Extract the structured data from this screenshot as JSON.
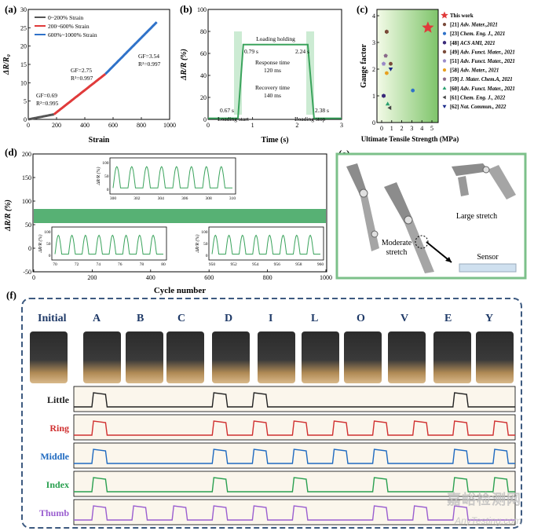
{
  "panel_a": {
    "label": "(a)",
    "ylabel": "ΔR/R₀",
    "xlabel": "Strain",
    "legend": [
      "0~200% Strain",
      "200~600% Strain",
      "600%~1000% Strain"
    ],
    "annotations": [
      "GF=0.69",
      "R²=0.995",
      "GF=2.75",
      "R²=0.997",
      "GF=3.54",
      "R²=0.997"
    ],
    "xticks": [
      "0",
      "200",
      "400",
      "600",
      "800",
      "1000"
    ],
    "yticks": [
      "0",
      "5",
      "10",
      "15",
      "20",
      "25",
      "30"
    ],
    "colors": {
      "s1": "#555555",
      "s2": "#e03a3a",
      "s3": "#2f72c9"
    }
  },
  "panel_b": {
    "label": "(b)",
    "ylabel": "ΔR/R (%)",
    "xlabel": "Time (s)",
    "annotations": [
      "Loading holding",
      "0.79 s",
      "2.24 s",
      "Response time",
      "120 ms",
      "Recovery time",
      "140 ms",
      "0.67 s",
      "2.38 s",
      "Loading start",
      "Loading stop"
    ],
    "xticks": [
      "0",
      "1",
      "2",
      "3"
    ],
    "yticks": [
      "0",
      "20",
      "40",
      "60",
      "80",
      "100"
    ],
    "color": "#3aa35c"
  },
  "panel_c": {
    "label": "(c)",
    "ylabel": "Gauge factor",
    "xlabel": "Ultimate Tensile Strength (MPa)",
    "xticks": [
      "0",
      "1",
      "2",
      "3",
      "4",
      "5"
    ],
    "yticks": [
      "0",
      "1",
      "2",
      "3",
      "4"
    ],
    "legend": [
      {
        "ref": "This work",
        "journal": "",
        "color": "#e03a3a",
        "shape": "star"
      },
      {
        "ref": "[21]",
        "journal": "Adv. Mater.,2021",
        "color": "#7a4a3a",
        "shape": "circle"
      },
      {
        "ref": "[23]",
        "journal": "Chem. Eng. J., 2021",
        "color": "#2f72c9",
        "shape": "circle"
      },
      {
        "ref": "[48]",
        "journal": "ACS AMI, 2021",
        "color": "#3a2a7a",
        "shape": "hex"
      },
      {
        "ref": "[49]",
        "journal": "Adv. Funct. Mater., 2021",
        "color": "#7a4a3a",
        "shape": "hex"
      },
      {
        "ref": "[51]",
        "journal": "Adv. Funct. Mater., 2021",
        "color": "#9a8ac8",
        "shape": "pent"
      },
      {
        "ref": "[58]",
        "journal": "Adv. Mater., 2021",
        "color": "#e8a020",
        "shape": "circle"
      },
      {
        "ref": "[59]",
        "journal": "J. Mater. Chem.A, 2021",
        "color": "#8a6a8a",
        "shape": "pent"
      },
      {
        "ref": "[60]",
        "journal": "Adv. Funct. Mater., 2021",
        "color": "#2aa070",
        "shape": "tri"
      },
      {
        "ref": "[61]",
        "journal": "Chem. Eng. J., 2022",
        "color": "#444444",
        "shape": "tril"
      },
      {
        "ref": "[62]",
        "journal": "Nat. Commun., 2022",
        "color": "#1a2a8a",
        "shape": "trid"
      }
    ]
  },
  "panel_d": {
    "label": "(d)",
    "ylabel": "ΔR/R (%)",
    "xlabel": "Cycle number",
    "xticks": [
      "0",
      "200",
      "400",
      "600",
      "800",
      "1000"
    ],
    "yticks": [
      "-50",
      "0",
      "50",
      "100",
      "150",
      "200"
    ],
    "inset_top": {
      "ylabel": "ΔR/R (%)",
      "xticks": [
        "300",
        "302",
        "304",
        "306",
        "308",
        "310"
      ],
      "yticks": [
        "0",
        "50",
        "100"
      ]
    },
    "inset_left": {
      "ylabel": "ΔR/R (%)",
      "xticks": [
        "70",
        "72",
        "74",
        "76",
        "78",
        "80"
      ],
      "yticks": [
        "0",
        "50",
        "100"
      ]
    },
    "inset_right": {
      "ylabel": "ΔR/R (%)",
      "xticks": [
        "950",
        "952",
        "954",
        "956",
        "958",
        "960"
      ],
      "yticks": [
        "0",
        "50",
        "100"
      ]
    },
    "color": "#3aa35c"
  },
  "panel_e": {
    "label": "(e)",
    "texts": [
      "Large stretch",
      "Moderate",
      "stretch",
      "Sensor"
    ]
  },
  "panel_f": {
    "label": "(f)",
    "gestures": [
      "Initial",
      "A",
      "B",
      "C",
      "D",
      "I",
      "L",
      "O",
      "V",
      "E",
      "Y"
    ],
    "fingers": [
      {
        "name": "Little",
        "color": "#222222",
        "pattern": [
          1,
          0,
          0,
          1,
          1,
          0,
          0,
          0,
          0,
          1,
          0
        ]
      },
      {
        "name": "Ring",
        "color": "#d03030",
        "pattern": [
          1,
          0,
          0,
          1,
          1,
          1,
          1,
          1,
          1,
          1,
          1
        ]
      },
      {
        "name": "Middle",
        "color": "#1f6ac0",
        "pattern": [
          1,
          0,
          0,
          1,
          1,
          1,
          1,
          1,
          0,
          1,
          1
        ]
      },
      {
        "name": "Index",
        "color": "#2aa050",
        "pattern": [
          1,
          0,
          0,
          1,
          0,
          1,
          0,
          1,
          0,
          1,
          1
        ]
      },
      {
        "name": "Thumb",
        "color": "#9b5fd0",
        "pattern": [
          1,
          1,
          1,
          1,
          1,
          1,
          0,
          1,
          1,
          1,
          0
        ]
      }
    ]
  },
  "watermark": {
    "cn": "嘉峪检测网",
    "en": "AnyTesting.com"
  }
}
